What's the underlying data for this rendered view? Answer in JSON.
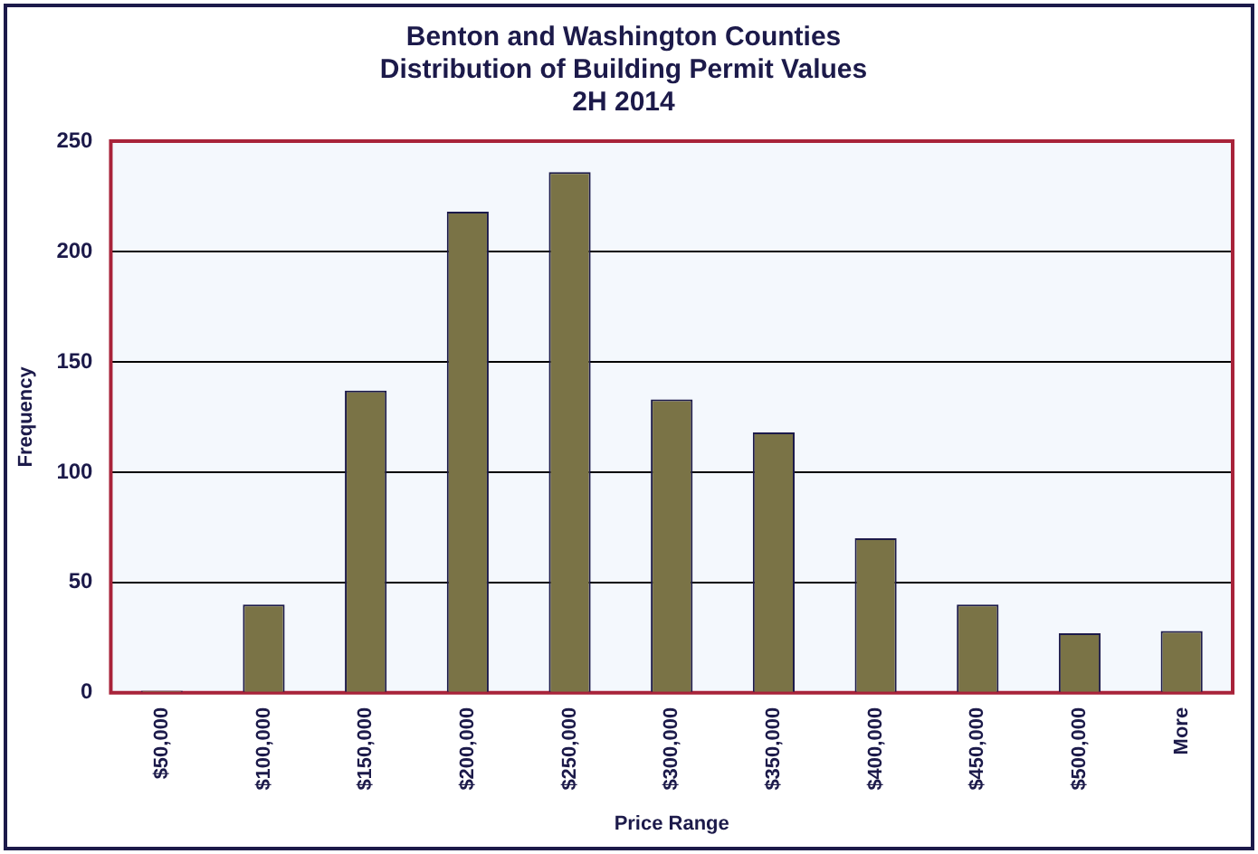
{
  "chart_data": {
    "type": "bar",
    "title": [
      "Benton and Washington Counties",
      "Distribution of Building Permit Values",
      "2H 2014"
    ],
    "xlabel": "Price Range",
    "ylabel": "Frequency",
    "categories": [
      "$50,000",
      "$100,000",
      "$150,000",
      "$200,000",
      "$250,000",
      "$300,000",
      "$350,000",
      "$400,000",
      "$450,000",
      "$500,000",
      "More"
    ],
    "values": [
      1,
      40,
      137,
      218,
      236,
      133,
      118,
      70,
      40,
      27,
      28
    ],
    "color": "#7a7346",
    "ylim": [
      0,
      250
    ],
    "yticks": [
      0,
      50,
      100,
      150,
      200,
      250
    ],
    "grid": "y",
    "legend": false
  }
}
